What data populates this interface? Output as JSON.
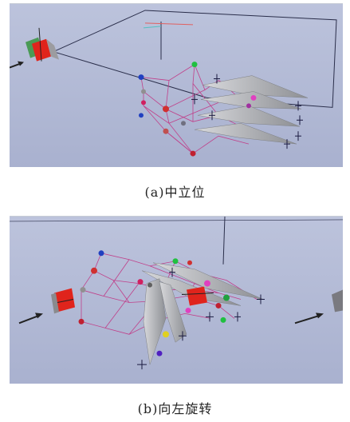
{
  "figure": {
    "panel_a": {
      "caption": "(a)中立位"
    },
    "panel_b": {
      "caption": "(b)向左旋转"
    }
  },
  "colors": {
    "background": "#b4bcd8",
    "link_lines": "#c0408a",
    "frame_lines": "#2a2e4a",
    "fin": "#a9aaae",
    "cube_red": "#e0241c",
    "cube_green": "#4a9a55"
  }
}
